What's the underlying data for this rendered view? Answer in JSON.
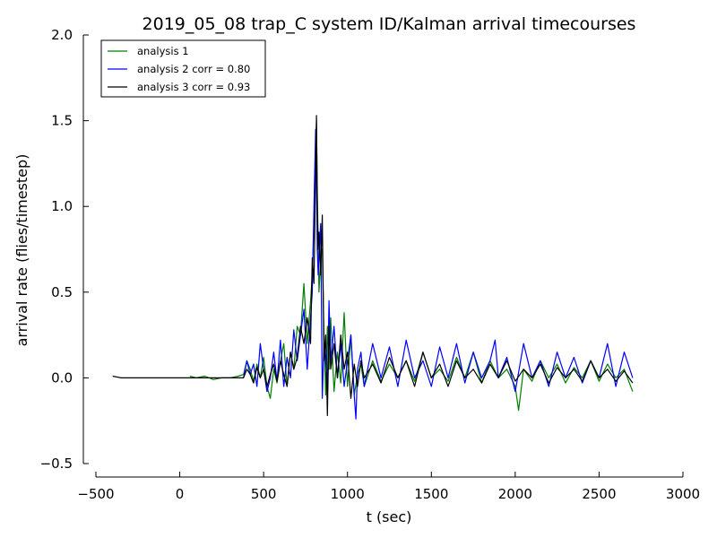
{
  "chart_data": {
    "type": "line",
    "title": "2019_05_08 trap_C system ID/Kalman arrival timecourses",
    "xlabel": "t (sec)",
    "ylabel": "arrival rate (flies/timestep)",
    "xlim": [
      -500,
      3000
    ],
    "ylim": [
      -0.5,
      2.0
    ],
    "xticks": [
      -500,
      0,
      500,
      1000,
      1500,
      2000,
      2500,
      3000
    ],
    "xtick_labels": [
      "−500",
      "0",
      "500",
      "1000",
      "1500",
      "2000",
      "2500",
      "3000"
    ],
    "yticks": [
      -0.5,
      0.0,
      0.5,
      1.0,
      1.5,
      2.0
    ],
    "ytick_labels": [
      "−0.5",
      "0.0",
      "0.5",
      "1.0",
      "1.5",
      "2.0"
    ],
    "grid": false,
    "legend_position": "top-left",
    "series": [
      {
        "name": "analysis 1",
        "color": "#008000",
        "x": [
          60,
          100,
          150,
          200,
          250,
          300,
          350,
          380,
          400,
          420,
          440,
          460,
          480,
          500,
          520,
          540,
          560,
          580,
          600,
          620,
          640,
          660,
          680,
          700,
          720,
          740,
          760,
          780,
          790,
          800,
          810,
          815,
          820,
          825,
          830,
          840,
          850,
          860,
          870,
          880,
          890,
          900,
          920,
          940,
          960,
          980,
          1000,
          1020,
          1040,
          1060,
          1080,
          1100,
          1150,
          1200,
          1250,
          1300,
          1350,
          1400,
          1450,
          1500,
          1550,
          1600,
          1650,
          1700,
          1750,
          1800,
          1850,
          1900,
          1950,
          2000,
          2020,
          2050,
          2100,
          2150,
          2200,
          2250,
          2300,
          2350,
          2400,
          2450,
          2500,
          2550,
          2600,
          2650,
          2700
        ],
        "y": [
          0.01,
          0.0,
          0.01,
          -0.01,
          0.0,
          0.0,
          0.01,
          0.02,
          0.1,
          0.05,
          -0.02,
          0.08,
          0.0,
          0.12,
          -0.05,
          -0.12,
          0.05,
          -0.03,
          0.1,
          0.2,
          -0.05,
          0.15,
          0.05,
          0.3,
          0.25,
          0.55,
          0.2,
          0.45,
          0.6,
          0.9,
          1.3,
          1.5,
          1.1,
          0.8,
          0.5,
          0.7,
          0.75,
          0.25,
          -0.1,
          0.3,
          0.05,
          0.35,
          -0.08,
          0.15,
          -0.03,
          0.38,
          -0.05,
          0.25,
          -0.1,
          0.02,
          0.08,
          -0.05,
          0.1,
          -0.02,
          0.08,
          0.0,
          0.1,
          -0.02,
          0.15,
          0.0,
          0.05,
          -0.02,
          0.12,
          0.0,
          0.15,
          -0.03,
          0.1,
          0.0,
          0.05,
          -0.05,
          -0.19,
          0.05,
          -0.02,
          0.1,
          0.0,
          0.08,
          -0.03,
          0.06,
          0.0,
          0.1,
          -0.02,
          0.08,
          0.0,
          0.05,
          -0.08
        ]
      },
      {
        "name": "analysis 2 corr = 0.80",
        "color": "#0000ff",
        "x": [
          380,
          400,
          420,
          440,
          460,
          480,
          500,
          520,
          540,
          560,
          580,
          600,
          620,
          640,
          660,
          680,
          700,
          720,
          740,
          760,
          780,
          790,
          800,
          810,
          815,
          820,
          825,
          830,
          840,
          850,
          860,
          870,
          880,
          890,
          900,
          920,
          940,
          960,
          980,
          1000,
          1020,
          1040,
          1050,
          1060,
          1080,
          1100,
          1150,
          1200,
          1250,
          1300,
          1350,
          1400,
          1450,
          1500,
          1550,
          1600,
          1650,
          1700,
          1750,
          1800,
          1850,
          1880,
          1900,
          1950,
          2000,
          2050,
          2100,
          2150,
          2200,
          2250,
          2300,
          2350,
          2400,
          2450,
          2500,
          2550,
          2600,
          2650,
          2700
        ],
        "y": [
          0.0,
          0.1,
          0.02,
          0.08,
          -0.05,
          0.2,
          0.05,
          -0.08,
          0.0,
          0.15,
          -0.02,
          0.22,
          -0.05,
          0.12,
          0.0,
          0.28,
          0.1,
          0.25,
          0.4,
          0.05,
          0.35,
          0.5,
          1.0,
          1.45,
          1.2,
          0.75,
          0.6,
          0.7,
          0.9,
          -0.12,
          0.2,
          0.1,
          -0.05,
          0.45,
          0.1,
          0.3,
          0.0,
          0.2,
          -0.05,
          0.1,
          0.25,
          -0.1,
          -0.24,
          0.05,
          0.15,
          -0.05,
          0.2,
          0.0,
          0.18,
          -0.05,
          0.22,
          0.0,
          0.1,
          -0.05,
          0.18,
          0.0,
          0.2,
          -0.03,
          0.15,
          0.0,
          0.1,
          0.22,
          0.0,
          0.12,
          -0.08,
          0.2,
          0.0,
          0.1,
          -0.05,
          0.15,
          0.0,
          0.12,
          -0.03,
          0.1,
          0.0,
          0.2,
          -0.05,
          0.15,
          0.0
        ]
      },
      {
        "name": "analysis 3 corr = 0.93",
        "color": "#000000",
        "x": [
          -400,
          -350,
          -300,
          -250,
          -200,
          -150,
          -100,
          -50,
          0,
          50,
          100,
          150,
          200,
          250,
          300,
          350,
          380,
          400,
          420,
          440,
          460,
          480,
          500,
          520,
          540,
          560,
          580,
          600,
          620,
          640,
          660,
          680,
          700,
          720,
          740,
          760,
          780,
          790,
          800,
          810,
          815,
          820,
          825,
          830,
          840,
          850,
          860,
          870,
          880,
          890,
          900,
          920,
          940,
          960,
          980,
          1000,
          1020,
          1040,
          1060,
          1080,
          1100,
          1150,
          1200,
          1250,
          1300,
          1350,
          1400,
          1450,
          1500,
          1550,
          1600,
          1650,
          1700,
          1750,
          1800,
          1850,
          1900,
          1950,
          2000,
          2050,
          2100,
          2150,
          2200,
          2250,
          2300,
          2350,
          2400,
          2450,
          2500,
          2550,
          2600,
          2650,
          2700
        ],
        "y": [
          0.01,
          0.0,
          0.0,
          0.0,
          0.0,
          0.0,
          0.0,
          0.0,
          0.0,
          0.0,
          0.0,
          0.0,
          0.0,
          0.0,
          0.0,
          0.0,
          0.0,
          0.05,
          0.02,
          -0.03,
          0.06,
          0.0,
          0.05,
          -0.05,
          0.02,
          0.08,
          -0.02,
          0.1,
          0.02,
          -0.05,
          0.15,
          0.05,
          0.12,
          0.3,
          0.2,
          0.35,
          0.2,
          0.7,
          0.55,
          1.2,
          1.53,
          1.0,
          0.75,
          0.85,
          0.6,
          0.95,
          0.1,
          0.25,
          -0.22,
          0.3,
          0.05,
          0.2,
          0.0,
          0.25,
          0.05,
          0.15,
          -0.12,
          0.08,
          -0.05,
          0.1,
          0.0,
          0.08,
          -0.03,
          0.12,
          0.0,
          0.1,
          -0.05,
          0.15,
          0.0,
          0.08,
          -0.05,
          0.1,
          0.0,
          0.05,
          -0.03,
          0.08,
          0.0,
          0.1,
          -0.02,
          0.05,
          0.0,
          0.08,
          -0.03,
          0.06,
          0.0,
          0.05,
          -0.02,
          0.1,
          0.0,
          0.05,
          -0.02,
          0.04,
          -0.03
        ]
      }
    ]
  }
}
